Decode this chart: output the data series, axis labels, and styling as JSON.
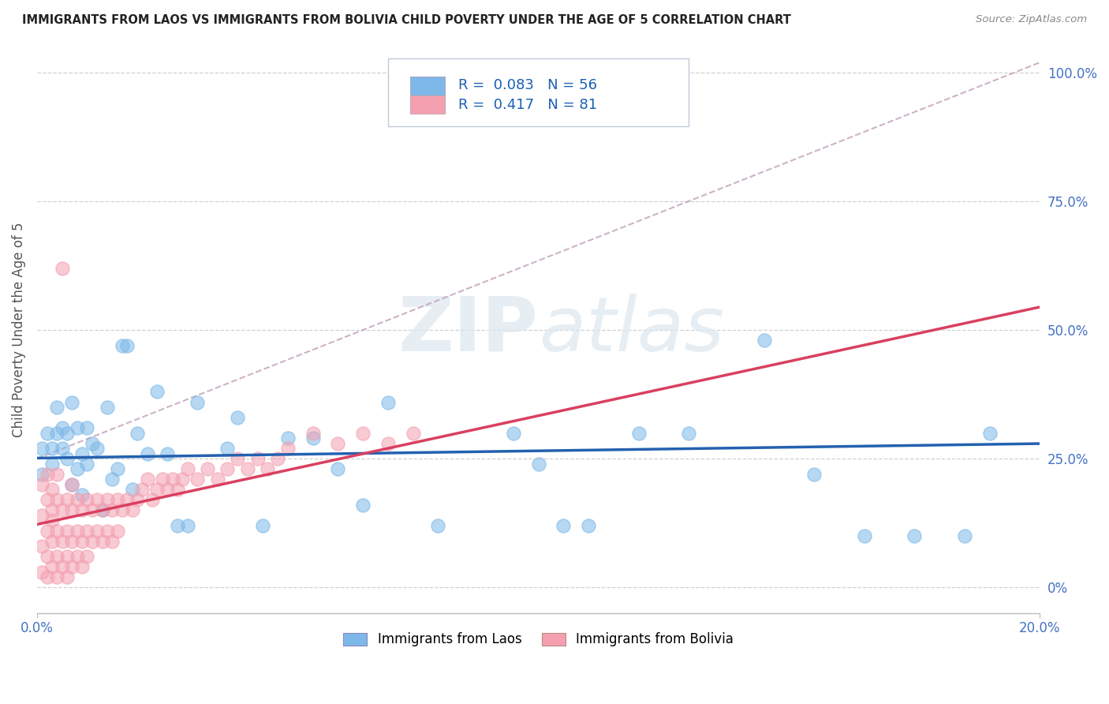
{
  "title": "IMMIGRANTS FROM LAOS VS IMMIGRANTS FROM BOLIVIA CHILD POVERTY UNDER THE AGE OF 5 CORRELATION CHART",
  "source": "Source: ZipAtlas.com",
  "ylabel": "Child Poverty Under the Age of 5",
  "xlim": [
    0.0,
    0.2
  ],
  "ylim": [
    -0.05,
    1.05
  ],
  "laos_color": "#7db8e8",
  "bolivia_color": "#f4a0b0",
  "laos_line_color": "#2461b0",
  "bolivia_line_color": "#d94060",
  "dash_line_color": "#e0a0b0",
  "laos_R": 0.083,
  "laos_N": 56,
  "bolivia_R": 0.417,
  "bolivia_N": 81,
  "laos_label": "Immigrants from Laos",
  "bolivia_label": "Immigrants from Bolivia",
  "watermark1": "ZIP",
  "watermark2": "atlas",
  "ytick_vals": [
    0.0,
    0.25,
    0.5,
    0.75,
    1.0
  ],
  "ytick_labels": [
    "0%",
    "25.0%",
    "50.0%",
    "75.0%",
    "100.0%"
  ],
  "laos_scatter_x": [
    0.001,
    0.001,
    0.002,
    0.003,
    0.003,
    0.004,
    0.004,
    0.005,
    0.005,
    0.006,
    0.006,
    0.007,
    0.007,
    0.008,
    0.008,
    0.009,
    0.009,
    0.01,
    0.01,
    0.011,
    0.012,
    0.013,
    0.014,
    0.015,
    0.016,
    0.017,
    0.018,
    0.019,
    0.02,
    0.022,
    0.024,
    0.026,
    0.028,
    0.03,
    0.032,
    0.038,
    0.04,
    0.045,
    0.05,
    0.055,
    0.06,
    0.065,
    0.07,
    0.08,
    0.095,
    0.1,
    0.105,
    0.11,
    0.12,
    0.13,
    0.145,
    0.155,
    0.165,
    0.175,
    0.185,
    0.19
  ],
  "laos_scatter_y": [
    0.27,
    0.22,
    0.3,
    0.27,
    0.24,
    0.3,
    0.35,
    0.27,
    0.31,
    0.25,
    0.3,
    0.2,
    0.36,
    0.23,
    0.31,
    0.18,
    0.26,
    0.24,
    0.31,
    0.28,
    0.27,
    0.15,
    0.35,
    0.21,
    0.23,
    0.47,
    0.47,
    0.19,
    0.3,
    0.26,
    0.38,
    0.26,
    0.12,
    0.12,
    0.36,
    0.27,
    0.33,
    0.12,
    0.29,
    0.29,
    0.23,
    0.16,
    0.36,
    0.12,
    0.3,
    0.24,
    0.12,
    0.12,
    0.3,
    0.3,
    0.48,
    0.22,
    0.1,
    0.1,
    0.1,
    0.3
  ],
  "bolivia_scatter_x": [
    0.001,
    0.001,
    0.001,
    0.001,
    0.002,
    0.002,
    0.002,
    0.002,
    0.002,
    0.003,
    0.003,
    0.003,
    0.003,
    0.003,
    0.004,
    0.004,
    0.004,
    0.004,
    0.004,
    0.005,
    0.005,
    0.005,
    0.005,
    0.006,
    0.006,
    0.006,
    0.006,
    0.007,
    0.007,
    0.007,
    0.007,
    0.008,
    0.008,
    0.008,
    0.009,
    0.009,
    0.009,
    0.01,
    0.01,
    0.01,
    0.011,
    0.011,
    0.012,
    0.012,
    0.013,
    0.013,
    0.014,
    0.014,
    0.015,
    0.015,
    0.016,
    0.016,
    0.017,
    0.018,
    0.019,
    0.02,
    0.021,
    0.022,
    0.023,
    0.024,
    0.025,
    0.026,
    0.027,
    0.028,
    0.029,
    0.03,
    0.032,
    0.034,
    0.036,
    0.038,
    0.04,
    0.042,
    0.044,
    0.046,
    0.048,
    0.05,
    0.055,
    0.06,
    0.065,
    0.07,
    0.075
  ],
  "bolivia_scatter_y": [
    0.2,
    0.14,
    0.08,
    0.03,
    0.17,
    0.11,
    0.06,
    0.02,
    0.22,
    0.15,
    0.09,
    0.04,
    0.19,
    0.13,
    0.17,
    0.11,
    0.06,
    0.02,
    0.22,
    0.15,
    0.09,
    0.04,
    0.62,
    0.17,
    0.11,
    0.06,
    0.02,
    0.15,
    0.09,
    0.04,
    0.2,
    0.17,
    0.11,
    0.06,
    0.15,
    0.09,
    0.04,
    0.17,
    0.11,
    0.06,
    0.15,
    0.09,
    0.17,
    0.11,
    0.15,
    0.09,
    0.17,
    0.11,
    0.15,
    0.09,
    0.17,
    0.11,
    0.15,
    0.17,
    0.15,
    0.17,
    0.19,
    0.21,
    0.17,
    0.19,
    0.21,
    0.19,
    0.21,
    0.19,
    0.21,
    0.23,
    0.21,
    0.23,
    0.21,
    0.23,
    0.25,
    0.23,
    0.25,
    0.23,
    0.25,
    0.27,
    0.3,
    0.28,
    0.3,
    0.28,
    0.3
  ]
}
